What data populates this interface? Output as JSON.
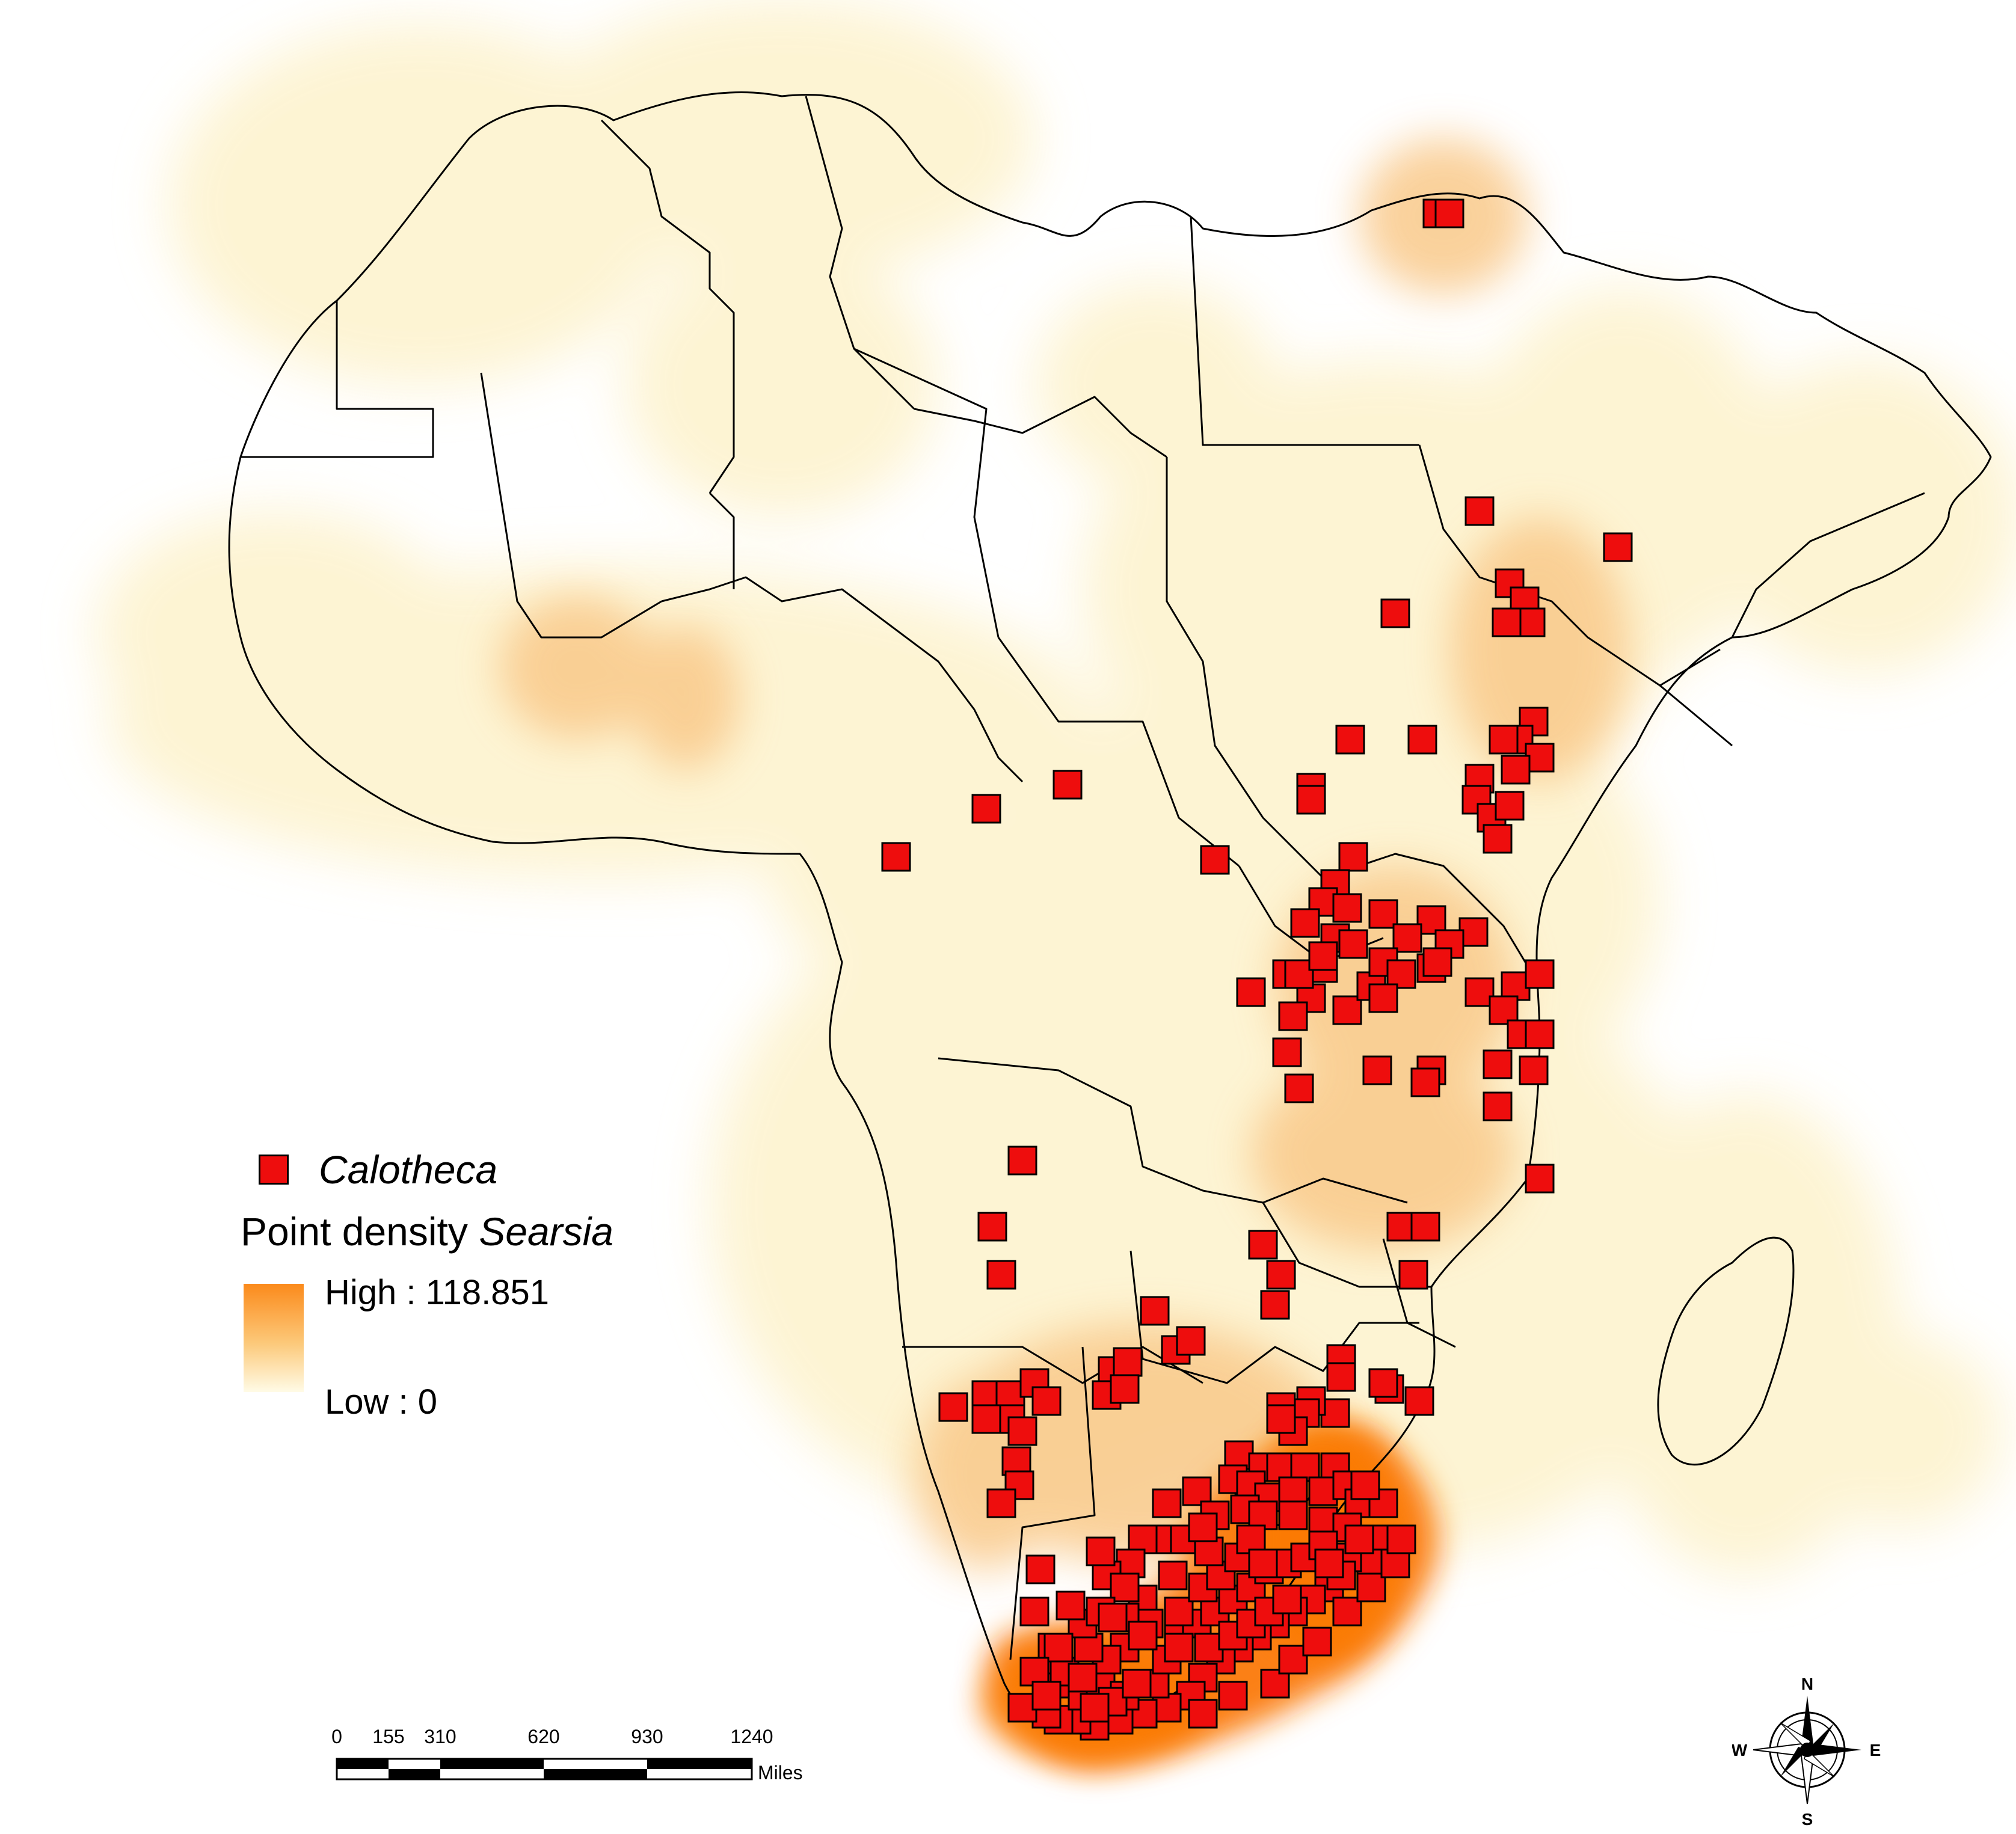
{
  "map": {
    "colors": {
      "background": "#ffffff",
      "density_low": "#fffbe6",
      "density_mid": "#fcd7a0",
      "density_high": "#fb7a00",
      "point_fill": "#ee0d0d",
      "point_stroke": "#000000",
      "border": "#000000"
    },
    "legend": {
      "point_label": "Calotheca",
      "density_title": "Point density",
      "density_species": "Searsia",
      "high_label": "High : 118.851",
      "low_label": "Low : 0"
    },
    "scale_bar": {
      "ticks": [
        "0",
        "155",
        "310",
        "620",
        "930",
        "1240"
      ],
      "unit": "Miles"
    },
    "compass": {
      "n": "N",
      "s": "S",
      "e": "E",
      "w": "W"
    }
  }
}
